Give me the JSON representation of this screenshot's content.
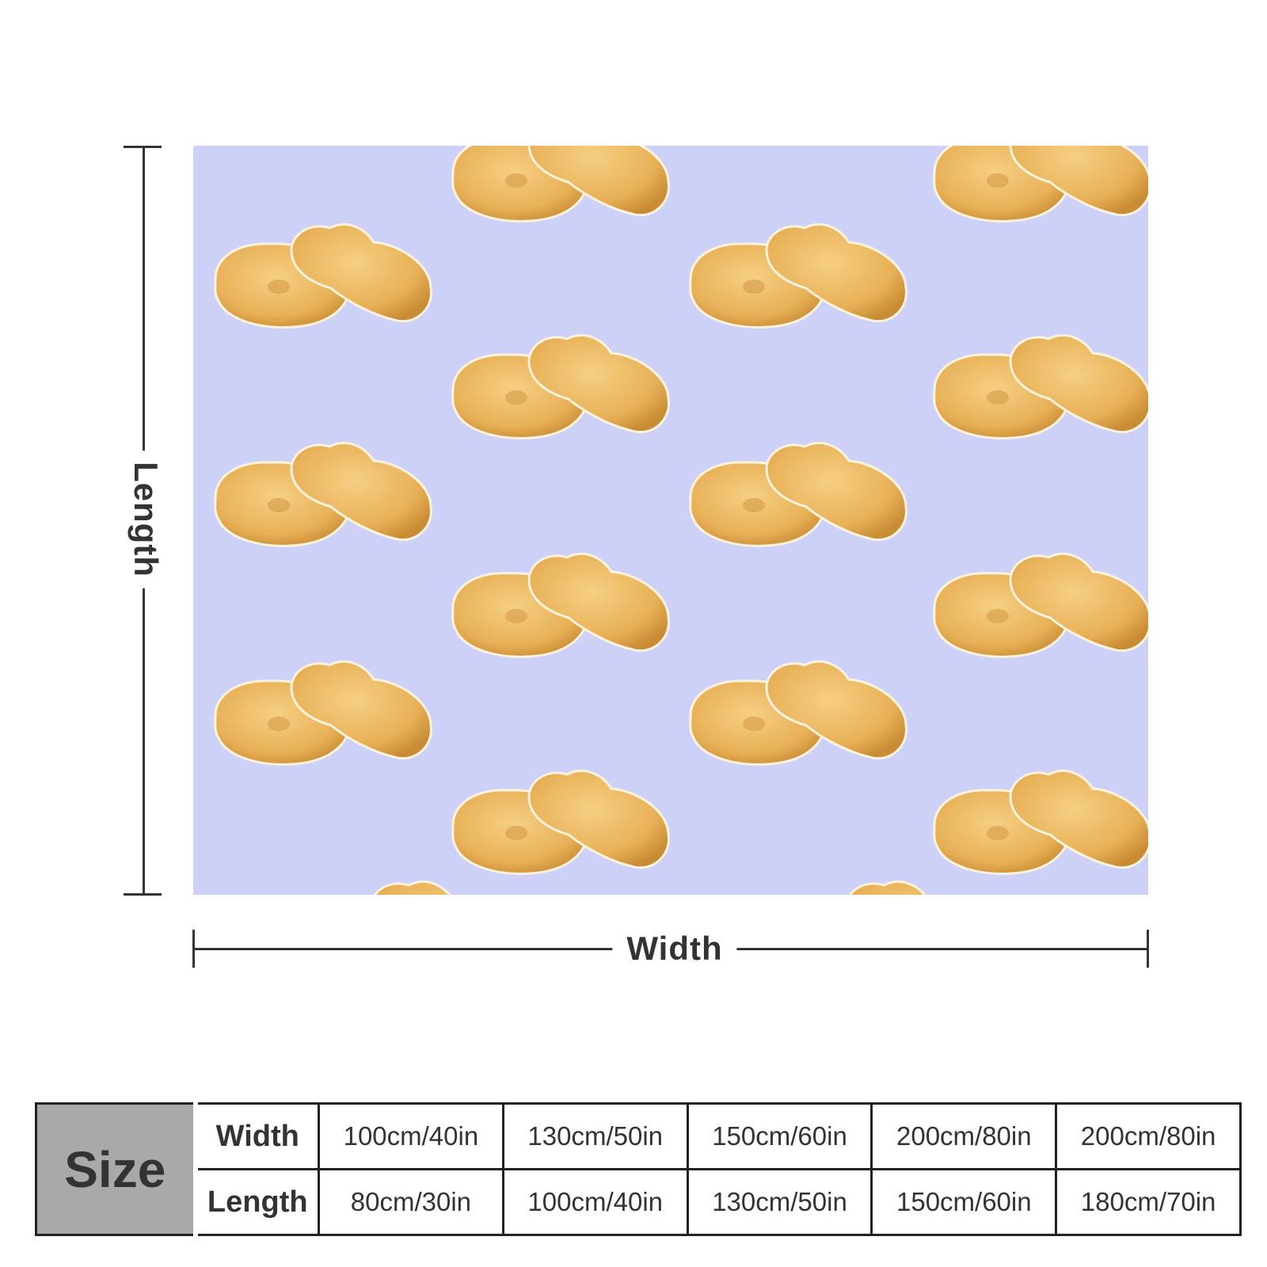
{
  "dimension_labels": {
    "length": "Length",
    "width": "Width"
  },
  "blanket": {
    "background_color": "#cdd1f8",
    "pattern_motif": "chicken-nugget-pair",
    "nugget_color": "#eab55c"
  },
  "size_table": {
    "size_label": "Size",
    "rows": [
      {
        "label": "Width",
        "values": [
          "100cm/40in",
          "130cm/50in",
          "150cm/60in",
          "200cm/80in",
          "200cm/80in"
        ]
      },
      {
        "label": "Length",
        "values": [
          "80cm/30in",
          "100cm/40in",
          "130cm/50in",
          "150cm/60in",
          "180cm/70in"
        ]
      }
    ]
  }
}
